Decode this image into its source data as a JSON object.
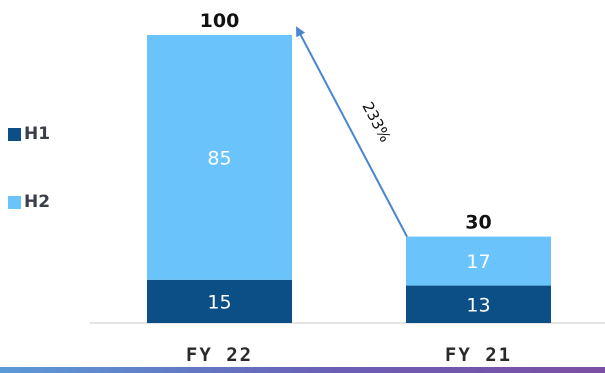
{
  "chart_data": {
    "type": "bar",
    "stacked": true,
    "categories": [
      "FY 22",
      "FY 21"
    ],
    "series": [
      {
        "name": "H1",
        "values": [
          15,
          13
        ],
        "color": "#0c4f86"
      },
      {
        "name": "H2",
        "values": [
          85,
          17
        ],
        "color": "#6ac4fb"
      }
    ],
    "totals": [
      100,
      30
    ],
    "ylim": [
      0,
      100
    ],
    "annotation": {
      "label": "233%",
      "from": "FY 21",
      "to": "FY 22",
      "color": "#4a86d0"
    },
    "legend_position": "left",
    "grid": false
  }
}
